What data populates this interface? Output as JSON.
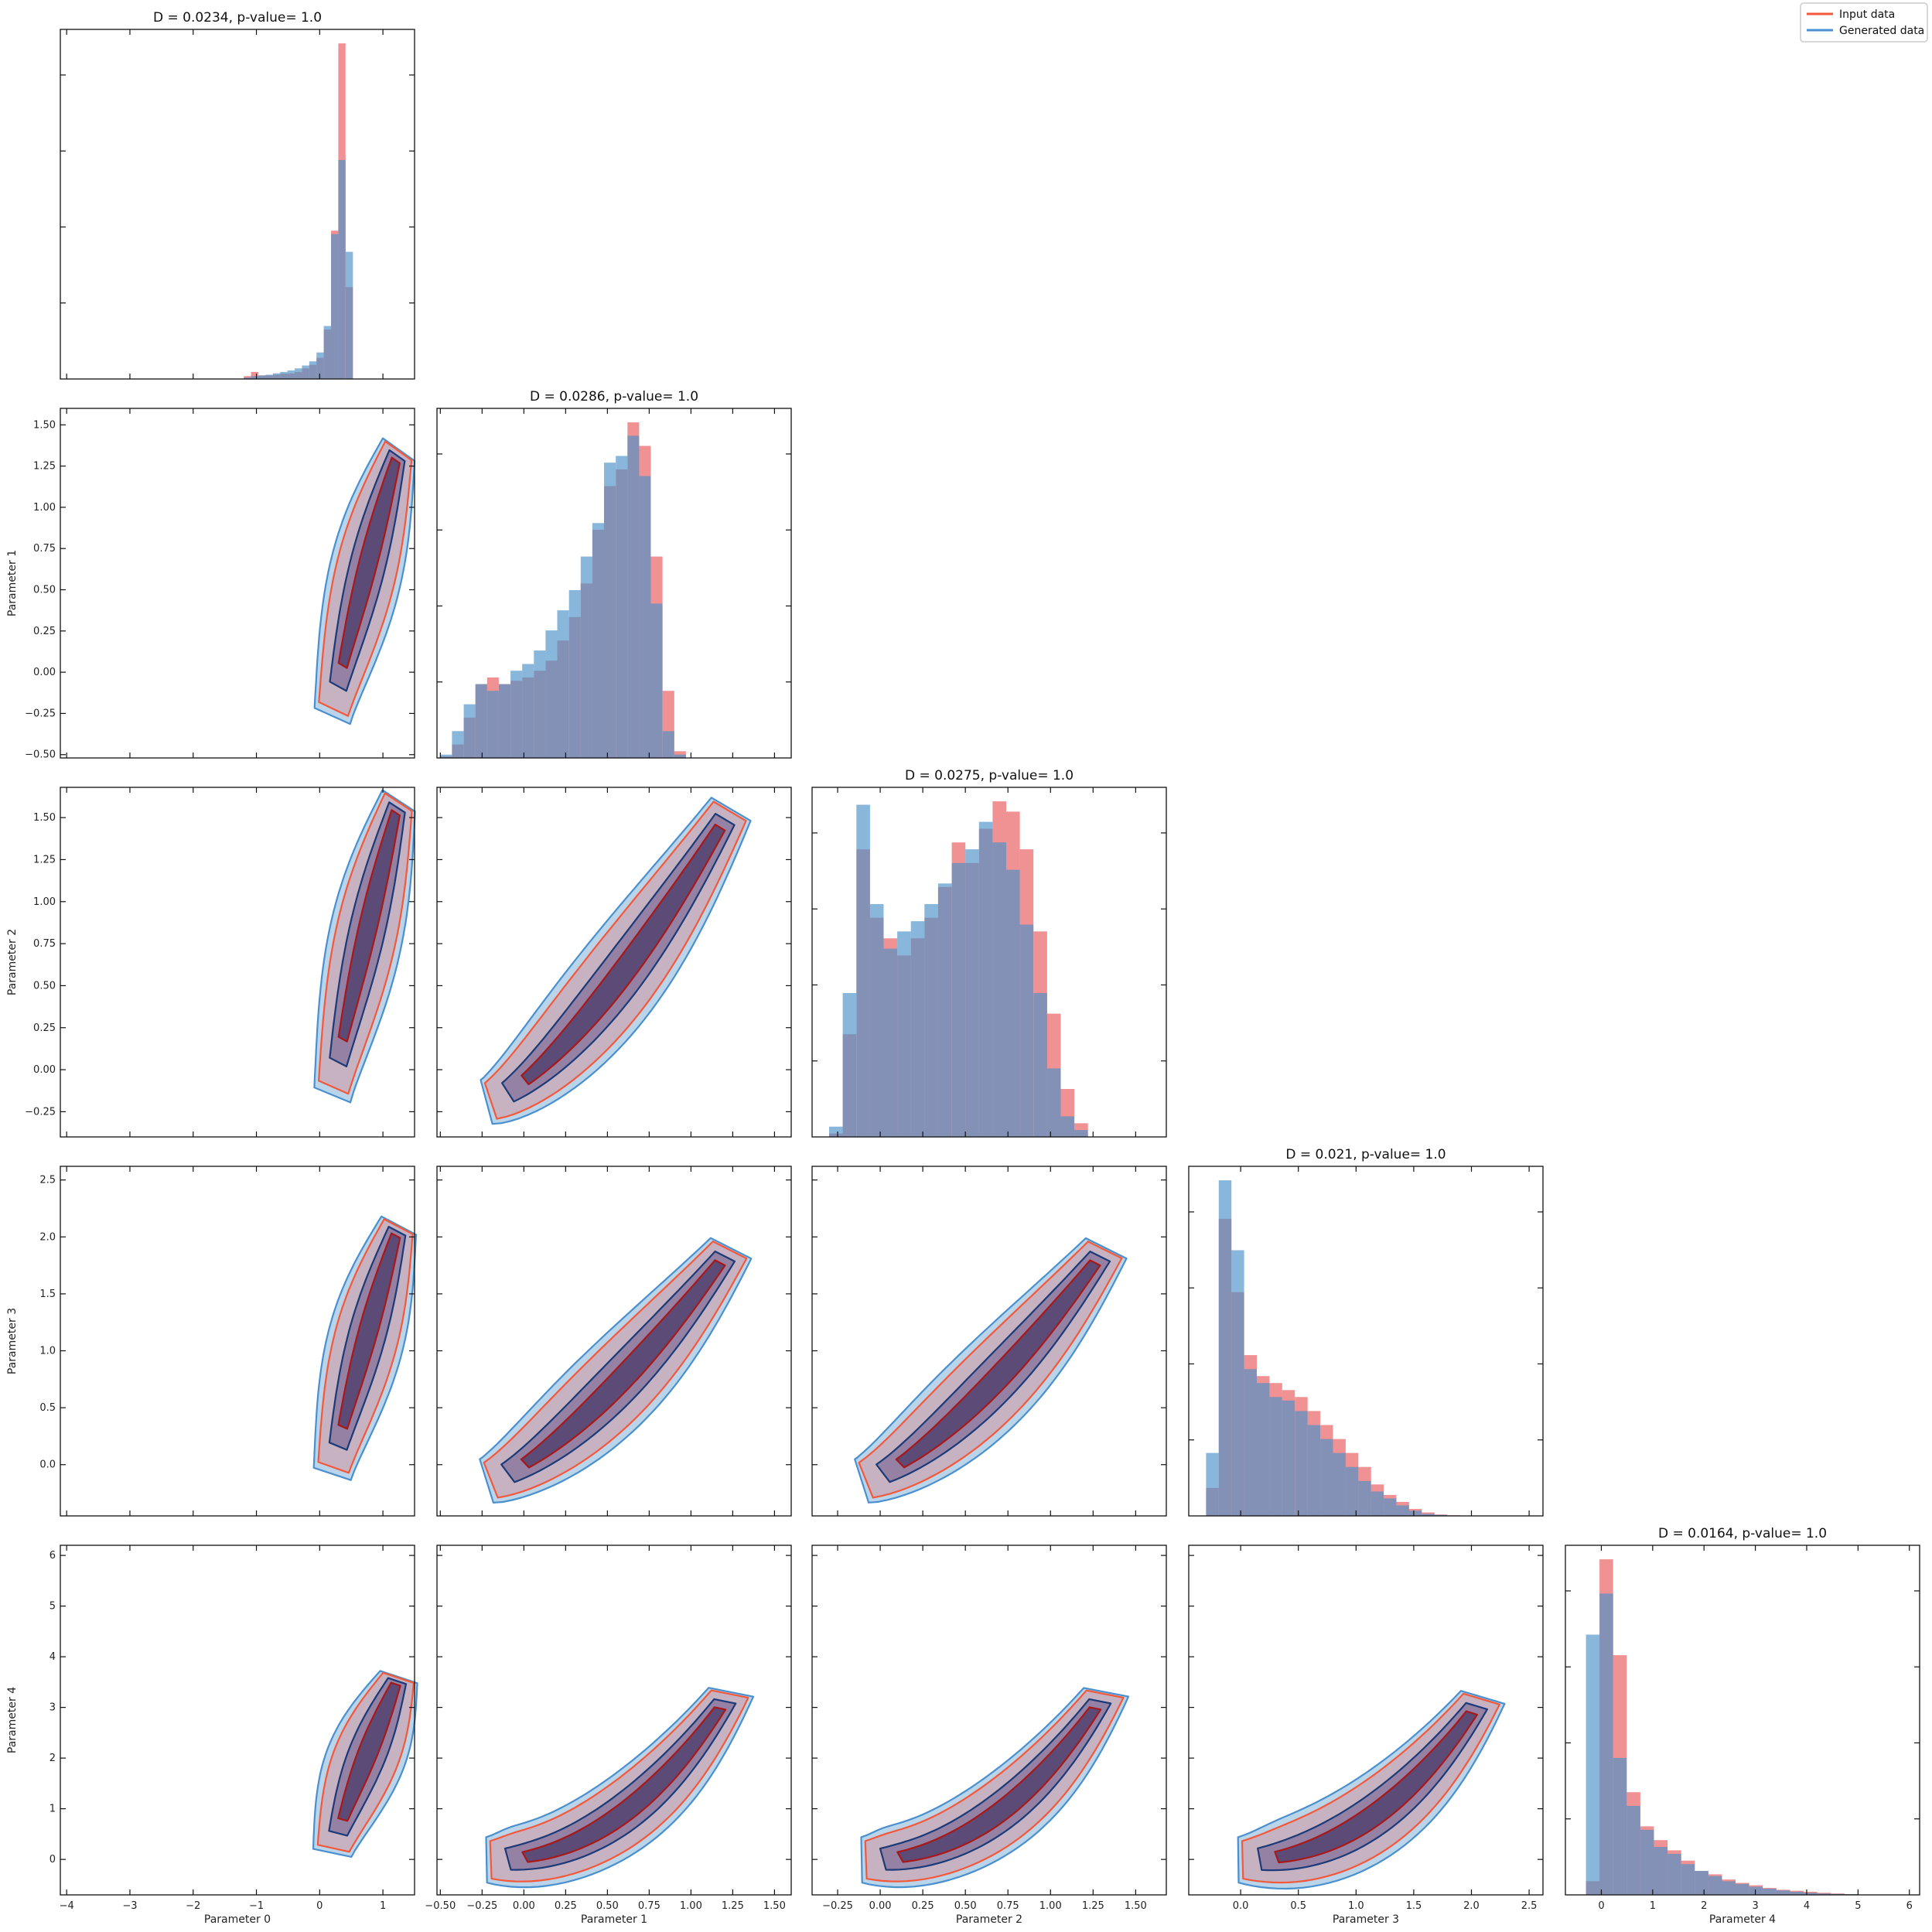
{
  "legend": {
    "position": "top-right",
    "entries": [
      {
        "label": "Input data",
        "color": "#f4583a"
      },
      {
        "label": "Generated data",
        "color": "#4a90cf"
      }
    ]
  },
  "colors": {
    "input_fill": "#e8585a",
    "generated_fill": "#4a90c8",
    "input_line": "#f4583a",
    "generated_line": "#4a90cf",
    "input_dark": "#a81818",
    "generated_dark": "#1a3a78",
    "overlap": "#6a5a8a",
    "core": "#4a3a68"
  },
  "chart_data": {
    "type": "corner",
    "grid": false,
    "parameters": [
      "Parameter 0",
      "Parameter 1",
      "Parameter 2",
      "Parameter 3",
      "Parameter 4"
    ],
    "ranges": [
      [
        -4.1,
        1.5
      ],
      [
        -0.52,
        1.6
      ],
      [
        -0.4,
        1.68
      ],
      [
        -0.45,
        2.62
      ],
      [
        -0.7,
        6.2
      ]
    ],
    "ticks": [
      [
        -4,
        -3,
        -2,
        -1,
        0,
        1
      ],
      [
        -0.5,
        -0.25,
        0.0,
        0.25,
        0.5,
        0.75,
        1.0,
        1.25,
        1.5
      ],
      [
        -0.25,
        0.0,
        0.25,
        0.5,
        0.75,
        1.0,
        1.25,
        1.5
      ],
      [
        0.0,
        0.5,
        1.0,
        1.5,
        2.0,
        2.5
      ],
      [
        0,
        1,
        2,
        3,
        4,
        5,
        6
      ]
    ],
    "tick_labels": [
      [
        "−4",
        "−3",
        "−2",
        "−1",
        "0",
        "1"
      ],
      [
        "−0.50",
        "−0.25",
        "0.00",
        "0.25",
        "0.50",
        "0.75",
        "1.00",
        "1.25",
        "1.50"
      ],
      [
        "−0.25",
        "0.00",
        "0.25",
        "0.50",
        "0.75",
        "1.00",
        "1.25",
        "1.50"
      ],
      [
        "0.0",
        "0.5",
        "1.0",
        "1.5",
        "2.0",
        "2.5"
      ],
      [
        "0",
        "1",
        "2",
        "3",
        "4",
        "5",
        "6"
      ]
    ],
    "diagonal_titles": [
      "D = 0.0234, p-value= 1.0",
      "D = 0.0286, p-value= 1.0",
      "D = 0.0275, p-value= 1.0",
      "D = 0.021, p-value= 1.0",
      "D = 0.0164, p-value= 1.0"
    ],
    "histograms": [
      {
        "bin_start": -1.2,
        "bin_width": 0.115,
        "input": [
          0.008,
          0.02,
          0.01,
          0.01,
          0.012,
          0.015,
          0.016,
          0.02,
          0.03,
          0.04,
          0.06,
          0.14,
          0.42,
          0.95,
          0.26
        ],
        "generated": [
          0.004,
          0.008,
          0.01,
          0.012,
          0.016,
          0.02,
          0.024,
          0.03,
          0.038,
          0.05,
          0.075,
          0.15,
          0.41,
          0.62,
          0.36
        ]
      },
      {
        "bin_start": -0.5,
        "bin_width": 0.07,
        "input": [
          0.005,
          0.04,
          0.12,
          0.22,
          0.24,
          0.22,
          0.23,
          0.24,
          0.26,
          0.29,
          0.35,
          0.42,
          0.52,
          0.68,
          0.81,
          0.86,
          1.0,
          0.93,
          0.6,
          0.2,
          0.02
        ],
        "generated": [
          0.01,
          0.08,
          0.16,
          0.22,
          0.2,
          0.22,
          0.26,
          0.28,
          0.32,
          0.38,
          0.44,
          0.5,
          0.6,
          0.7,
          0.88,
          0.9,
          0.96,
          0.84,
          0.46,
          0.08,
          0.01
        ]
      },
      {
        "bin_start": -0.3,
        "bin_width": 0.08,
        "input": [
          0.01,
          0.3,
          0.84,
          0.64,
          0.58,
          0.53,
          0.58,
          0.64,
          0.73,
          0.86,
          0.8,
          0.9,
          0.98,
          0.95,
          0.84,
          0.6,
          0.36,
          0.14,
          0.04
        ],
        "generated": [
          0.03,
          0.42,
          0.97,
          0.68,
          0.55,
          0.6,
          0.63,
          0.68,
          0.74,
          0.8,
          0.84,
          0.92,
          0.86,
          0.78,
          0.62,
          0.42,
          0.2,
          0.06,
          0.02
        ]
      },
      {
        "bin_start": -0.3,
        "bin_width": 0.11,
        "input": [
          0.08,
          0.85,
          0.64,
          0.46,
          0.4,
          0.38,
          0.36,
          0.34,
          0.3,
          0.26,
          0.22,
          0.18,
          0.14,
          0.09,
          0.06,
          0.04,
          0.02,
          0.01,
          0.004,
          0.002
        ],
        "generated": [
          0.18,
          0.96,
          0.76,
          0.42,
          0.38,
          0.34,
          0.33,
          0.3,
          0.26,
          0.22,
          0.18,
          0.14,
          0.1,
          0.07,
          0.05,
          0.03,
          0.015,
          0.006,
          0.003,
          0.001
        ]
      },
      {
        "bin_start": -0.3,
        "bin_width": 0.265,
        "input": [
          0.04,
          0.98,
          0.7,
          0.3,
          0.2,
          0.16,
          0.13,
          0.1,
          0.07,
          0.06,
          0.045,
          0.035,
          0.028,
          0.02,
          0.015,
          0.012,
          0.009,
          0.006,
          0.004,
          0.002,
          0.001,
          0.001,
          0.0005,
          0.0005
        ],
        "generated": [
          0.76,
          0.88,
          0.4,
          0.26,
          0.19,
          0.14,
          0.12,
          0.09,
          0.07,
          0.055,
          0.04,
          0.032,
          0.024,
          0.018,
          0.013,
          0.009,
          0.006,
          0.004,
          0.003,
          0.002,
          0.001,
          0.0005,
          0.0003,
          0.0002
        ]
      }
    ]
  }
}
